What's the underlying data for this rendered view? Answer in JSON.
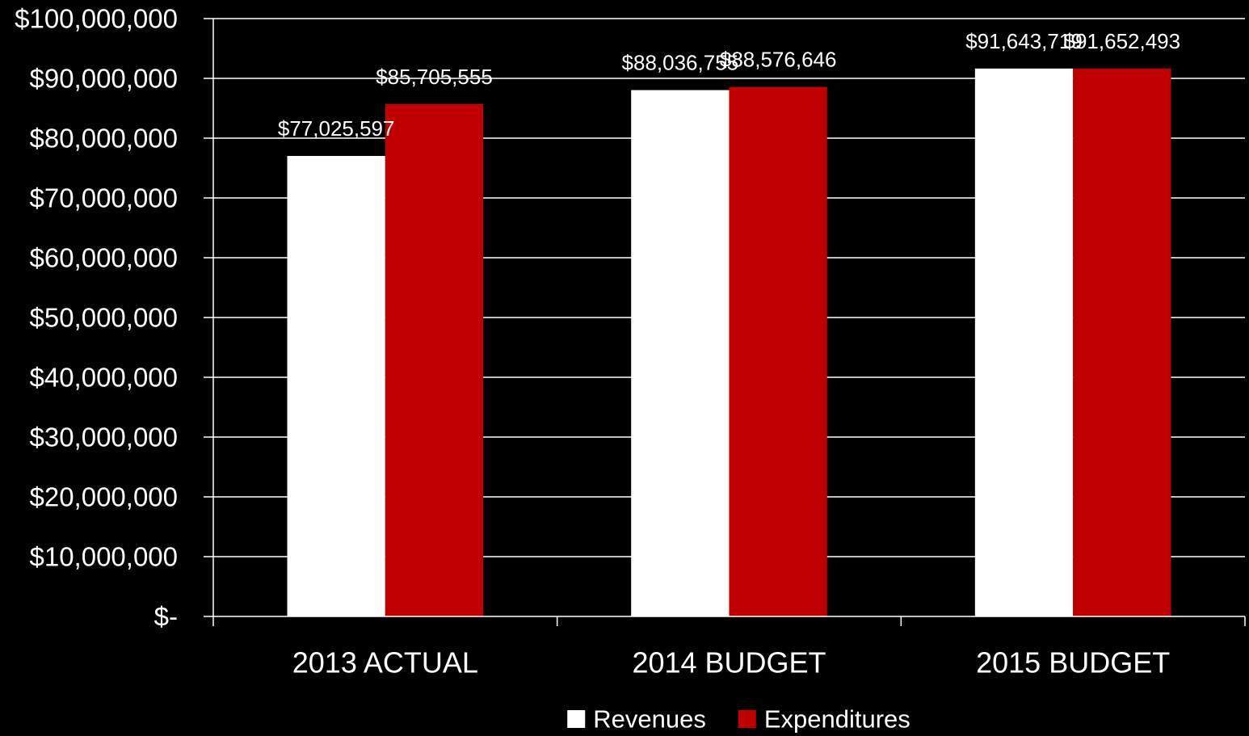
{
  "chart_data": {
    "type": "bar",
    "title": "",
    "xlabel": "",
    "ylabel": "",
    "categories": [
      "2013 ACTUAL",
      "2014 BUDGET",
      "2015 BUDGET"
    ],
    "series": [
      {
        "name": "Revenues",
        "color": "#ffffff",
        "values": [
          77025597,
          88036755,
          91643719
        ],
        "labels": [
          "$77,025,597",
          "$88,036,755",
          "$91,643,719"
        ]
      },
      {
        "name": "Expenditures",
        "color": "#c00000",
        "values": [
          85705555,
          88576646,
          91652493
        ],
        "labels": [
          "$85,705,555",
          "$88,576,646",
          "$91,652,493"
        ]
      }
    ],
    "ylim": [
      0,
      100000000
    ],
    "yticks": [
      0,
      10000000,
      20000000,
      30000000,
      40000000,
      50000000,
      60000000,
      70000000,
      80000000,
      90000000,
      100000000
    ],
    "ytick_labels": [
      "$-",
      "$10,000,000",
      "$20,000,000",
      "$30,000,000",
      "$40,000,000",
      "$50,000,000",
      "$60,000,000",
      "$70,000,000",
      "$80,000,000",
      "$90,000,000",
      "$100,000,000"
    ],
    "grid": true,
    "legend_position": "bottom",
    "background_color": "#000000",
    "axis_color": "#ffffff"
  }
}
